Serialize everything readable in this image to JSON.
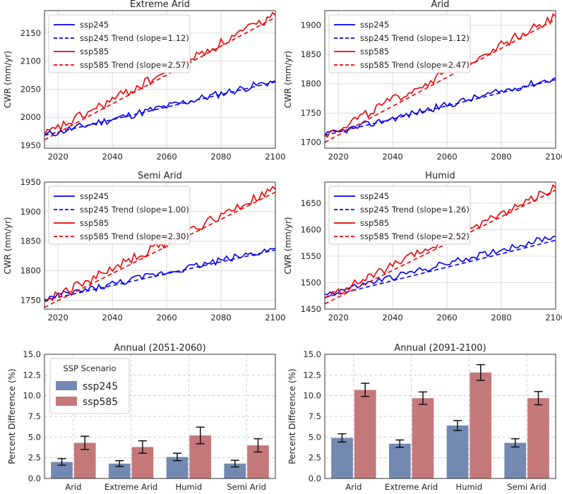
{
  "chart_data": [
    {
      "type": "line",
      "title": "Extreme Arid",
      "ylabel": "CWR (mm/yr)",
      "xlim": [
        2015,
        2100
      ],
      "ylim": [
        1945,
        2190
      ],
      "xticks": [
        2020,
        2040,
        2060,
        2080,
        2100
      ],
      "yticks": [
        1950,
        2000,
        2050,
        2100,
        2150
      ],
      "series": [
        {
          "name": "ssp245",
          "color": "#0000ee",
          "start": 1968,
          "end": 2065,
          "noise": 7,
          "label": "ssp245",
          "trend_label": "ssp245 Trend (slope=1.12)",
          "trend": [
            1968,
            2063
          ]
        },
        {
          "name": "ssp585",
          "color": "#ee0000",
          "start": 1968,
          "end": 2182,
          "noise": 9,
          "label": "ssp585",
          "trend_label": "ssp585 Trend (slope=2.57)",
          "trend": [
            1960,
            2178
          ]
        }
      ]
    },
    {
      "type": "line",
      "title": "Arid",
      "ylabel": "CWR (mm/yr)",
      "xlim": [
        2015,
        2100
      ],
      "ylim": [
        1690,
        1925
      ],
      "xticks": [
        2020,
        2040,
        2060,
        2080,
        2100
      ],
      "yticks": [
        1700,
        1750,
        1800,
        1850,
        1900
      ],
      "series": [
        {
          "name": "ssp245",
          "color": "#0000ee",
          "start": 1712,
          "end": 1810,
          "noise": 6,
          "label": "ssp245",
          "trend_label": "ssp245 Trend (slope=1.12)",
          "trend": [
            1712,
            1807
          ]
        },
        {
          "name": "ssp585",
          "color": "#ee0000",
          "start": 1712,
          "end": 1915,
          "noise": 8,
          "label": "ssp585",
          "trend_label": "ssp585 Trend (slope=2.47)",
          "trend": [
            1700,
            1910
          ]
        }
      ]
    },
    {
      "type": "line",
      "title": "Semi Arid",
      "ylabel": "CWR (mm/yr)",
      "xlim": [
        2015,
        2100
      ],
      "ylim": [
        1735,
        1950
      ],
      "xticks": [
        2020,
        2040,
        2060,
        2080,
        2100
      ],
      "yticks": [
        1750,
        1800,
        1850,
        1900,
        1950
      ],
      "series": [
        {
          "name": "ssp245",
          "color": "#0000ee",
          "start": 1752,
          "end": 1838,
          "noise": 6,
          "label": "ssp245",
          "trend_label": "ssp245 Trend (slope=1.00)",
          "trend": [
            1750,
            1835
          ]
        },
        {
          "name": "ssp585",
          "color": "#ee0000",
          "start": 1748,
          "end": 1938,
          "noise": 8,
          "label": "ssp585",
          "trend_label": "ssp585 Trend (slope=2.30)",
          "trend": [
            1738,
            1933
          ]
        }
      ]
    },
    {
      "type": "line",
      "title": "Humid",
      "ylabel": "CWR (mm/yr)",
      "xlim": [
        2015,
        2100
      ],
      "ylim": [
        1450,
        1690
      ],
      "xticks": [
        2020,
        2040,
        2060,
        2080,
        2100
      ],
      "yticks": [
        1450,
        1500,
        1550,
        1600,
        1650
      ],
      "series": [
        {
          "name": "ssp245",
          "color": "#0000ee",
          "start": 1478,
          "end": 1588,
          "noise": 6,
          "label": "ssp245",
          "trend_label": "ssp245 Trend (slope=1.26)",
          "trend": [
            1472,
            1580
          ]
        },
        {
          "name": "ssp585",
          "color": "#ee0000",
          "start": 1470,
          "end": 1680,
          "noise": 8,
          "label": "ssp585",
          "trend_label": "ssp585 Trend (slope=2.52)",
          "trend": [
            1460,
            1675
          ]
        }
      ]
    },
    {
      "type": "bar",
      "title": "Annual (2051-2060)",
      "ylabel": "Percent Difference (%)",
      "ylim": [
        0,
        15
      ],
      "yticks": [
        "0.0",
        "2.5",
        "5.0",
        "7.5",
        "10.0",
        "12.5",
        "15.0"
      ],
      "categories": [
        "Arid",
        "Extreme Arid",
        "Humid",
        "Semi Arid"
      ],
      "legend_title": "SSP Scenario",
      "series": [
        {
          "name": "ssp245",
          "color": "#7389b2",
          "values": [
            2.0,
            1.8,
            2.6,
            1.8
          ],
          "errors": [
            0.4,
            0.35,
            0.45,
            0.4
          ]
        },
        {
          "name": "ssp585",
          "color": "#c4787a",
          "values": [
            4.3,
            3.8,
            5.2,
            4.0
          ],
          "errors": [
            0.8,
            0.75,
            1.0,
            0.8
          ]
        }
      ]
    },
    {
      "type": "bar",
      "title": "Annual (2091-2100)",
      "ylabel": "Percent Difference (%)",
      "ylim": [
        0,
        15
      ],
      "yticks": [
        "0.0",
        "2.5",
        "5.0",
        "7.5",
        "10.0",
        "12.5",
        "15.0"
      ],
      "categories": [
        "Arid",
        "Extreme Arid",
        "Humid",
        "Semi Arid"
      ],
      "series": [
        {
          "name": "ssp245",
          "color": "#7389b2",
          "values": [
            4.9,
            4.2,
            6.4,
            4.3
          ],
          "errors": [
            0.5,
            0.45,
            0.6,
            0.5
          ]
        },
        {
          "name": "ssp585",
          "color": "#c4787a",
          "values": [
            10.7,
            9.7,
            12.8,
            9.7
          ],
          "errors": [
            0.8,
            0.75,
            0.95,
            0.8
          ]
        }
      ]
    }
  ]
}
